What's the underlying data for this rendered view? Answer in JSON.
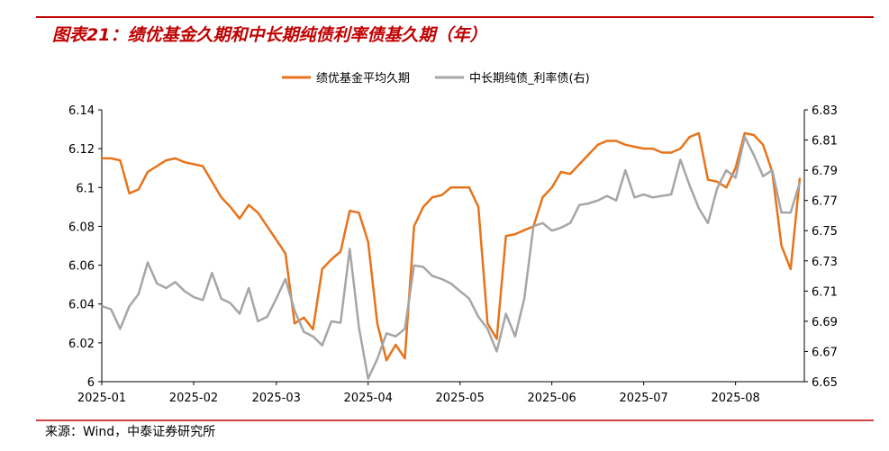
{
  "chart_data": {
    "type": "line",
    "title": "图表21：绩优基金久期和中长期纯债利率债基久期（年）",
    "source": "来源：Wind，中泰证券研究所",
    "categories": [
      "2025-01",
      null,
      null,
      null,
      null,
      null,
      null,
      null,
      null,
      null,
      "2025-02",
      null,
      null,
      null,
      null,
      null,
      null,
      null,
      null,
      "2025-03",
      null,
      null,
      null,
      null,
      null,
      null,
      null,
      null,
      null,
      "2025-04",
      null,
      null,
      null,
      null,
      null,
      null,
      null,
      null,
      null,
      "2025-05",
      null,
      null,
      null,
      null,
      null,
      null,
      null,
      null,
      null,
      "2025-06",
      null,
      null,
      null,
      null,
      null,
      null,
      null,
      null,
      null,
      "2025-07",
      null,
      null,
      null,
      null,
      null,
      null,
      null,
      null,
      null,
      "2025-08",
      null,
      null,
      null,
      null,
      null,
      null,
      null
    ],
    "series": [
      {
        "name": "绩优基金平均久期",
        "color": "#e8731a",
        "axis": "y",
        "values": [
          6.115,
          6.115,
          6.114,
          6.097,
          6.099,
          6.108,
          6.111,
          6.114,
          6.115,
          6.113,
          6.112,
          6.111,
          6.103,
          6.095,
          6.09,
          6.084,
          6.091,
          6.087,
          6.08,
          6.073,
          6.066,
          6.03,
          6.033,
          6.027,
          6.058,
          6.063,
          6.067,
          6.088,
          6.087,
          6.072,
          6.03,
          6.011,
          6.019,
          6.012,
          6.08,
          6.09,
          6.095,
          6.096,
          6.1,
          6.1,
          6.1,
          6.09,
          6.03,
          6.022,
          6.075,
          6.076,
          6.078,
          6.08,
          6.095,
          6.1,
          6.108,
          6.107,
          6.112,
          6.117,
          6.122,
          6.124,
          6.124,
          6.122,
          6.121,
          6.12,
          6.12,
          6.118,
          6.118,
          6.12,
          6.126,
          6.128,
          6.104,
          6.103,
          6.1,
          6.11,
          6.128,
          6.127,
          6.122,
          6.108,
          6.07,
          6.058,
          6.105
        ]
      },
      {
        "name": "中长期纯债_利率债(右)",
        "color": "#a6a6a6",
        "axis": "y2",
        "values": [
          6.7,
          6.698,
          6.685,
          6.7,
          6.708,
          6.729,
          6.715,
          6.712,
          6.716,
          6.71,
          6.706,
          6.704,
          6.722,
          6.705,
          6.702,
          6.695,
          6.712,
          6.69,
          6.693,
          6.705,
          6.718,
          6.697,
          6.683,
          6.68,
          6.674,
          6.69,
          6.689,
          6.738,
          6.686,
          6.652,
          6.665,
          6.682,
          6.68,
          6.685,
          6.727,
          6.726,
          6.72,
          6.718,
          6.715,
          6.71,
          6.705,
          6.693,
          6.685,
          6.67,
          6.695,
          6.68,
          6.705,
          6.753,
          6.755,
          6.75,
          6.752,
          6.755,
          6.767,
          6.768,
          6.77,
          6.773,
          6.77,
          6.79,
          6.772,
          6.774,
          6.772,
          6.773,
          6.774,
          6.797,
          6.78,
          6.765,
          6.755,
          6.778,
          6.79,
          6.785,
          6.812,
          6.8,
          6.786,
          6.79,
          6.762,
          6.762,
          6.782
        ]
      }
    ],
    "ylim": [
      6,
      6.14
    ],
    "yticks": [
      6,
      6.02,
      6.04,
      6.06,
      6.08,
      6.1,
      6.12,
      6.14
    ],
    "y2lim": [
      6.65,
      6.83
    ],
    "y2ticks": [
      6.65,
      6.67,
      6.69,
      6.71,
      6.73,
      6.75,
      6.77,
      6.79,
      6.81,
      6.83
    ],
    "legend": "top",
    "grid": false
  }
}
